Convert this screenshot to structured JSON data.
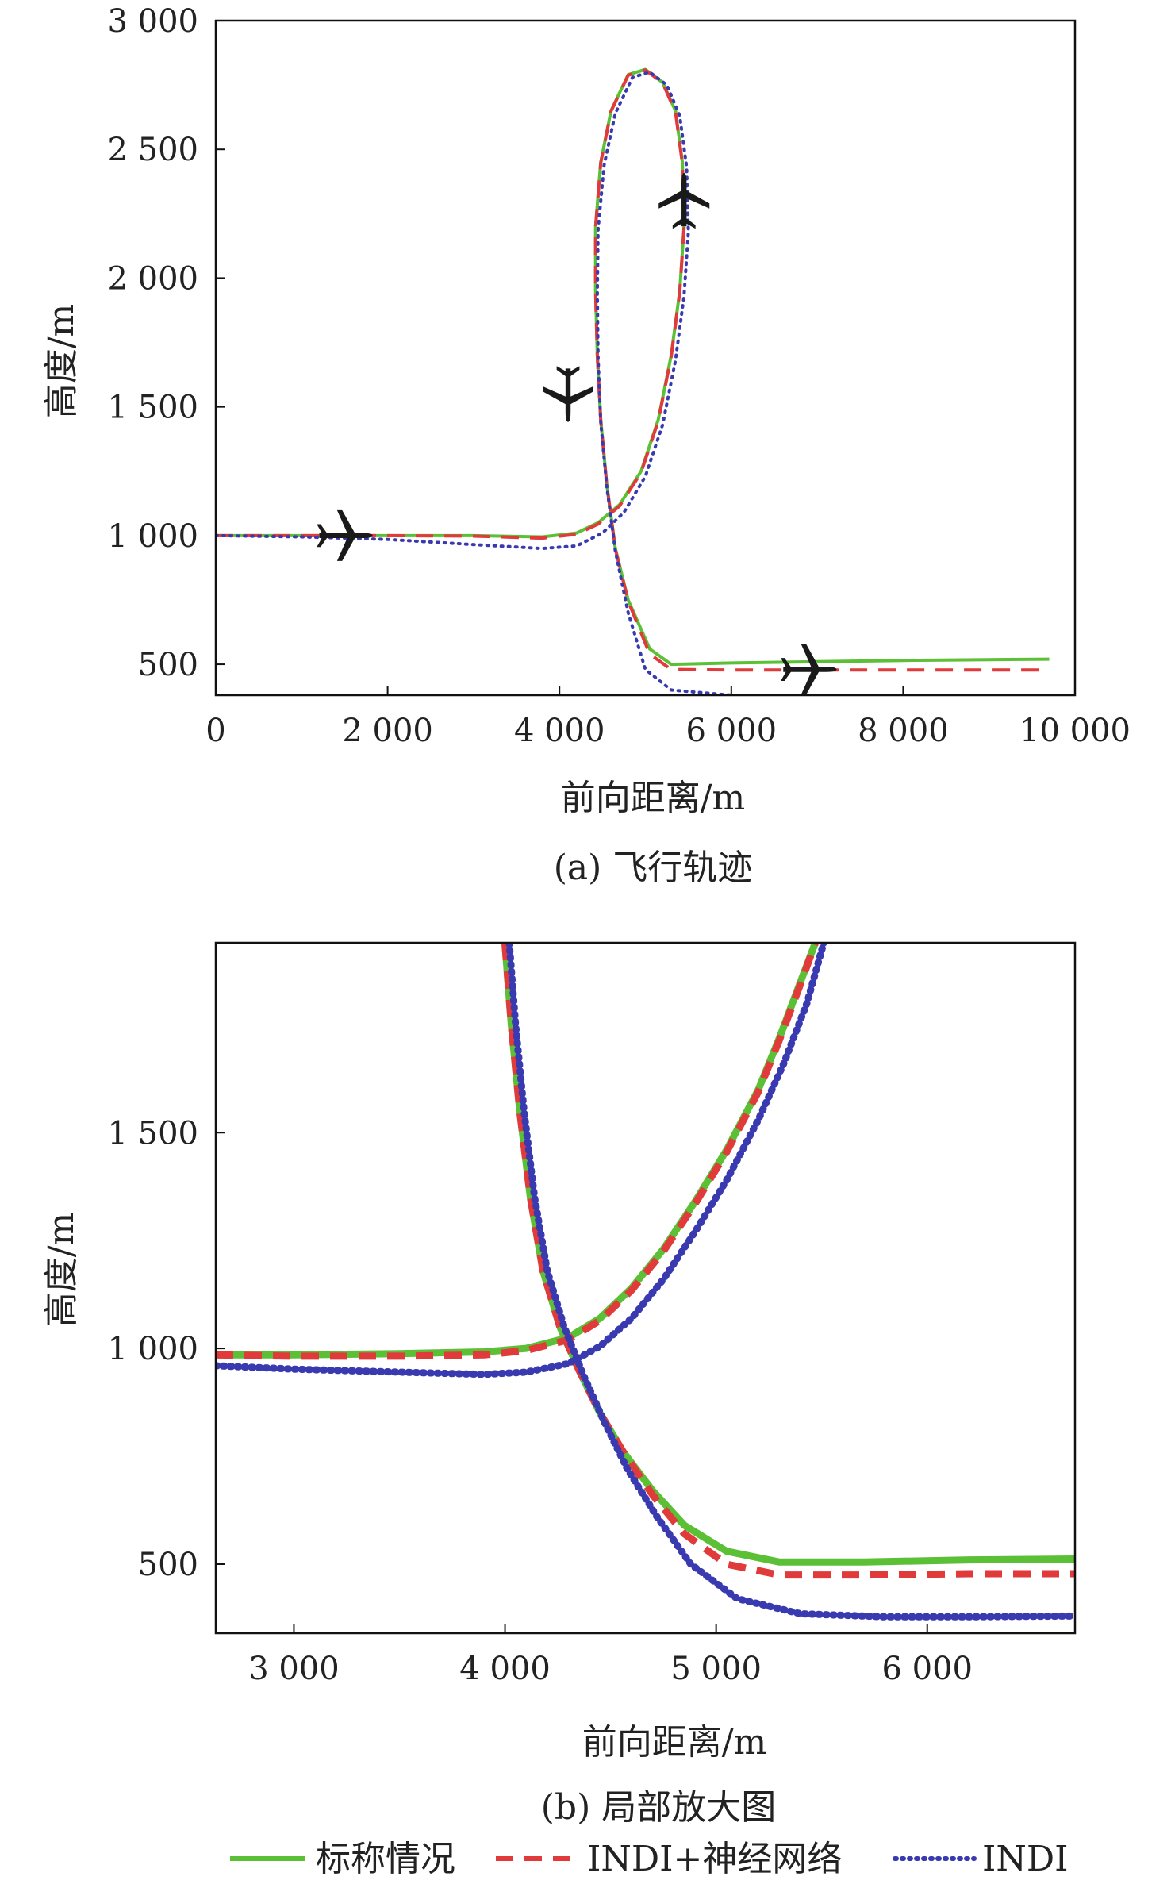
{
  "chart_data": [
    {
      "type": "line",
      "caption": "(a) 飞行轨迹",
      "xlabel": "前向距离/m",
      "ylabel": "高度/m",
      "xlim": [
        0,
        10000
      ],
      "ylim": [
        380,
        3000
      ],
      "xticks": [
        0,
        2000,
        4000,
        6000,
        8000,
        10000
      ],
      "xtick_labels": [
        "0",
        "2 000",
        "4 000",
        "6 000",
        "8 000",
        "10 000"
      ],
      "yticks": [
        500,
        1000,
        1500,
        2000,
        2500,
        3000
      ],
      "ytick_labels": [
        "500",
        "1 000",
        "1 500",
        "2 000",
        "2 500",
        "3 000"
      ],
      "grid": false,
      "series": [
        {
          "name": "标称情况",
          "color": "#5cc036",
          "style": "solid",
          "x": [
            0,
            1000,
            2000,
            3000,
            3800,
            4200,
            4450,
            4700,
            4950,
            5150,
            5300,
            5400,
            5450,
            5430,
            5350,
            5200,
            5000,
            4800,
            4600,
            4480,
            4420,
            4420,
            4440,
            4480,
            4550,
            4650,
            4800,
            5050,
            5300,
            6000,
            7000,
            8000,
            9000,
            9700
          ],
          "y": [
            1000,
            1000,
            1000,
            1000,
            995,
            1010,
            1050,
            1120,
            1250,
            1450,
            1700,
            1950,
            2200,
            2450,
            2650,
            2760,
            2810,
            2790,
            2650,
            2450,
            2200,
            1950,
            1700,
            1450,
            1200,
            950,
            750,
            560,
            500,
            505,
            510,
            515,
            518,
            520
          ]
        },
        {
          "name": "INDI+神经网络",
          "color": "#e03a3a",
          "style": "dashed",
          "x": [
            0,
            1000,
            2000,
            3000,
            3800,
            4200,
            4450,
            4700,
            4950,
            5150,
            5300,
            5400,
            5450,
            5430,
            5350,
            5200,
            5000,
            4800,
            4600,
            4480,
            4420,
            4420,
            4440,
            4480,
            4550,
            4650,
            4800,
            5050,
            5300,
            6000,
            7000,
            8000,
            9000,
            9700
          ],
          "y": [
            1000,
            1000,
            1000,
            998,
            990,
            1005,
            1045,
            1115,
            1245,
            1445,
            1695,
            1945,
            2195,
            2445,
            2645,
            2758,
            2808,
            2788,
            2648,
            2448,
            2198,
            1948,
            1698,
            1448,
            1198,
            948,
            745,
            540,
            480,
            478,
            478,
            478,
            478,
            478
          ]
        },
        {
          "name": "INDI",
          "color": "#3a3ab0",
          "style": "dotted",
          "x": [
            0,
            1000,
            2000,
            3000,
            3800,
            4200,
            4500,
            4750,
            5000,
            5200,
            5350,
            5450,
            5500,
            5480,
            5400,
            5250,
            5050,
            4850,
            4650,
            4520,
            4450,
            4440,
            4450,
            4480,
            4550,
            4650,
            4800,
            5000,
            5300,
            6000,
            7000,
            8000,
            9000,
            9700
          ],
          "y": [
            1000,
            995,
            985,
            965,
            950,
            960,
            1010,
            1090,
            1230,
            1430,
            1680,
            1930,
            2180,
            2430,
            2630,
            2750,
            2800,
            2780,
            2640,
            2440,
            2190,
            1940,
            1690,
            1440,
            1190,
            940,
            700,
            480,
            400,
            380,
            380,
            380,
            380,
            380
          ]
        }
      ],
      "annotations": [
        "airplane-icon",
        "airplane-icon",
        "airplane-icon",
        "airplane-icon"
      ]
    },
    {
      "type": "line",
      "caption": "(b) 局部放大图",
      "xlabel": "前向距离/m",
      "ylabel": "高度/m",
      "xlim": [
        2630,
        6700
      ],
      "ylim": [
        340,
        1940
      ],
      "xticks": [
        3000,
        4000,
        5000,
        6000
      ],
      "xtick_labels": [
        "3 000",
        "4 000",
        "5 000",
        "6 000"
      ],
      "yticks": [
        500,
        1000,
        1500
      ],
      "ytick_labels": [
        "500",
        "1 000",
        "1 500"
      ],
      "grid": false,
      "series": [
        {
          "name": "标称情况",
          "color": "#5cc036",
          "style": "solid",
          "x": [
            2630,
            3000,
            3500,
            3900,
            4100,
            4300,
            4450,
            4600,
            4750,
            4900,
            5050,
            5200,
            5300,
            5400,
            5470
          ],
          "y": [
            985,
            985,
            988,
            992,
            1000,
            1025,
            1070,
            1140,
            1230,
            1340,
            1460,
            1600,
            1720,
            1850,
            1940
          ]
        },
        {
          "name": "标称情况",
          "color": "#5cc036",
          "style": "solid",
          "x": [
            4000,
            4030,
            4070,
            4120,
            4180,
            4260,
            4350,
            4450,
            4560,
            4700,
            4850,
            5050,
            5300,
            5700,
            6200,
            6700
          ],
          "y": [
            1940,
            1750,
            1550,
            1350,
            1180,
            1050,
            950,
            850,
            760,
            670,
            590,
            530,
            505,
            505,
            510,
            512
          ]
        },
        {
          "name": "INDI+神经网络",
          "color": "#e03a3a",
          "style": "dashed",
          "x": [
            2630,
            3000,
            3500,
            3900,
            4100,
            4300,
            4450,
            4600,
            4750,
            4900,
            5050,
            5200,
            5300,
            5400,
            5470
          ],
          "y": [
            985,
            982,
            982,
            985,
            995,
            1020,
            1065,
            1135,
            1225,
            1335,
            1455,
            1595,
            1715,
            1845,
            1940
          ]
        },
        {
          "name": "INDI+神经网络",
          "color": "#e03a3a",
          "style": "dashed",
          "x": [
            4000,
            4030,
            4070,
            4120,
            4180,
            4260,
            4350,
            4450,
            4560,
            4700,
            4850,
            5050,
            5300,
            5700,
            6200,
            6700
          ],
          "y": [
            1940,
            1750,
            1550,
            1350,
            1180,
            1050,
            950,
            850,
            760,
            660,
            570,
            500,
            475,
            475,
            478,
            478
          ]
        },
        {
          "name": "INDI",
          "color": "#3a3ab0",
          "style": "dotted",
          "x": [
            2630,
            3000,
            3500,
            3900,
            4100,
            4300,
            4450,
            4600,
            4750,
            4900,
            5050,
            5200,
            5320,
            5430,
            5510
          ],
          "y": [
            960,
            952,
            945,
            940,
            945,
            965,
            1005,
            1070,
            1160,
            1270,
            1390,
            1530,
            1660,
            1800,
            1940
          ]
        },
        {
          "name": "INDI",
          "color": "#3a3ab0",
          "style": "dotted",
          "x": [
            4020,
            4050,
            4090,
            4140,
            4200,
            4280,
            4370,
            4470,
            4580,
            4720,
            4880,
            5100,
            5400,
            5800,
            6200,
            6700
          ],
          "y": [
            1940,
            1750,
            1550,
            1350,
            1180,
            1050,
            940,
            830,
            720,
            610,
            500,
            420,
            385,
            378,
            378,
            380
          ]
        }
      ]
    }
  ],
  "legend": [
    {
      "label": "标称情况",
      "color": "#5cc036",
      "style": "solid"
    },
    {
      "label": "INDI+神经网络",
      "color": "#e03a3a",
      "style": "dashed"
    },
    {
      "label": "INDI",
      "color": "#3a3ab0",
      "style": "dotted"
    }
  ]
}
